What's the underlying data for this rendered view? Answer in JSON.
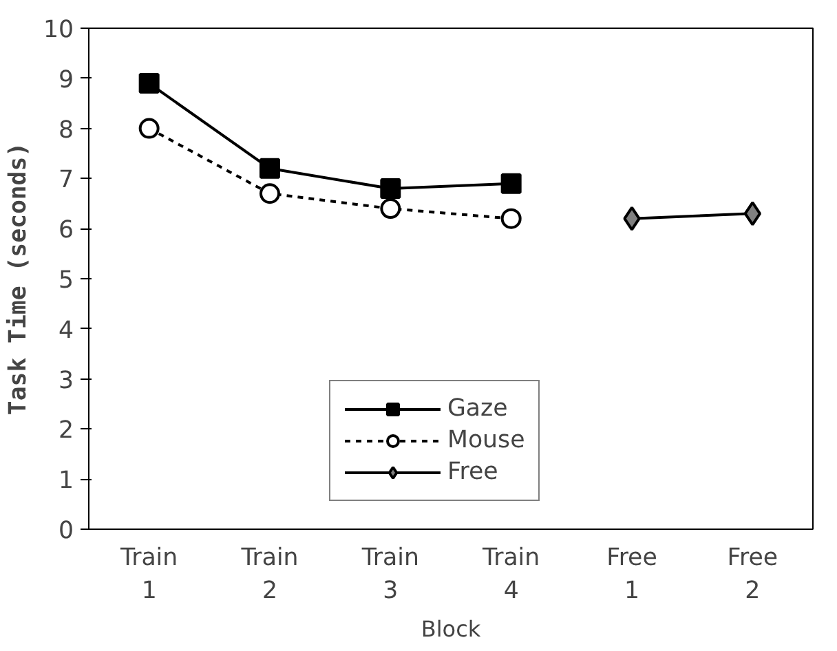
{
  "chart_data": {
    "type": "line",
    "xlabel": "Block",
    "ylabel": "Task Time (seconds)",
    "categories": [
      "Train\n1",
      "Train\n2",
      "Train\n3",
      "Train\n4",
      "Free\n1",
      "Free\n2"
    ],
    "ylim": [
      0,
      10
    ],
    "yticks": [
      0,
      1,
      2,
      3,
      4,
      5,
      6,
      7,
      8,
      9,
      10
    ],
    "grid": false,
    "legend": "bottom",
    "series": [
      {
        "name": "Gaze",
        "color": "#000000",
        "marker": "square",
        "line_style": "solid",
        "values": [
          8.9,
          7.2,
          6.8,
          6.9,
          null,
          null
        ]
      },
      {
        "name": "Mouse",
        "color": "#000000",
        "marker": "circle",
        "line_style": "dotted",
        "values": [
          8.0,
          6.7,
          6.4,
          6.2,
          null,
          null
        ]
      },
      {
        "name": "Free",
        "color": "#808080",
        "marker": "diamond",
        "line_style": "solid",
        "values": [
          null,
          null,
          null,
          null,
          6.2,
          6.3
        ]
      }
    ]
  }
}
